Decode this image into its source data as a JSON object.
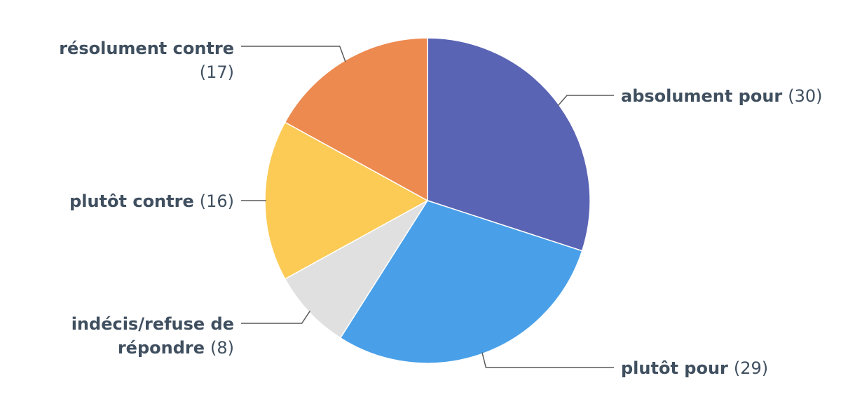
{
  "chart_data": {
    "type": "pie",
    "slices": [
      {
        "label": "absolument pour",
        "value": 30,
        "value_text": "(30)",
        "color": "#5a64b4"
      },
      {
        "label": "plutôt pour",
        "value": 29,
        "value_text": "(29)",
        "color": "#4aa0e8"
      },
      {
        "label": "indécis/refuse de répondre",
        "label_lines": [
          "indécis/refuse de",
          "répondre"
        ],
        "value": 8,
        "value_text": "(8)",
        "color": "#e0e0e0"
      },
      {
        "label": "plutôt contre",
        "value": 16,
        "value_text": "(16)",
        "color": "#fccb55"
      },
      {
        "label": "résolument contre",
        "value": 17,
        "value_text": "(17)",
        "color": "#ed8a50"
      }
    ],
    "start_angle_deg": 0,
    "direction": "clockwise",
    "label_color": "#3f4f5f",
    "connector_color": "#5a5a5a",
    "slice_border_color": "#ffffff"
  }
}
